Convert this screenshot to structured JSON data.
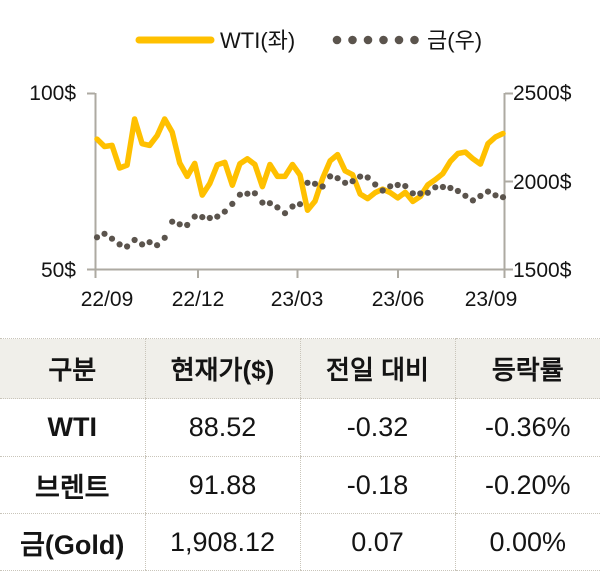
{
  "chart_data": {
    "type": "line",
    "title": "",
    "legend_position": "top-center",
    "grid": false,
    "x_tick_labels": [
      "22/09",
      "22/12",
      "23/03",
      "23/06",
      "23/09"
    ],
    "left_axis": {
      "labels": [
        "100$",
        "50$"
      ],
      "min": 50,
      "max": 100
    },
    "right_axis": {
      "labels": [
        "2500$",
        "2000$",
        "1500$"
      ],
      "min": 1500,
      "max": 2500
    },
    "series": [
      {
        "name": "WTI(좌)",
        "axis": "left",
        "style": "solid",
        "color": "#FFC000",
        "values": [
          86.9,
          84.8,
          85.1,
          78.7,
          79.5,
          92.6,
          85.6,
          85.1,
          87.9,
          92.6,
          88.9,
          80.1,
          76.3,
          80.0,
          71.0,
          74.3,
          79.6,
          80.3,
          73.8,
          79.9,
          81.3,
          79.7,
          73.4,
          79.7,
          76.3,
          76.3,
          79.7,
          76.7,
          66.7,
          69.3,
          75.7,
          80.7,
          82.5,
          77.9,
          76.8,
          71.3,
          70.0,
          71.7,
          72.7,
          71.7,
          70.2,
          71.8,
          69.2,
          70.6,
          73.9,
          75.4,
          77.1,
          80.6,
          82.8,
          83.2,
          81.3,
          79.8,
          85.6,
          87.5,
          88.5
        ]
      },
      {
        "name": "금(우)",
        "axis": "right",
        "style": "dotted",
        "color": "#5B544D",
        "values": [
          1680,
          1700,
          1672,
          1640,
          1628,
          1665,
          1640,
          1652,
          1635,
          1677,
          1769,
          1754,
          1750,
          1798,
          1795,
          1790,
          1798,
          1826,
          1870,
          1922,
          1928,
          1930,
          1877,
          1874,
          1850,
          1817,
          1855,
          1868,
          1990,
          1984,
          1969,
          2026,
          2016,
          1990,
          1999,
          2025,
          2020,
          1980,
          1946,
          1970,
          1977,
          1971,
          1930,
          1929,
          1933,
          1964,
          1966,
          1960,
          1943,
          1916,
          1890,
          1915,
          1940,
          1919,
          1908
        ]
      }
    ]
  },
  "table": {
    "headers": [
      "구분",
      "현재가($)",
      "전일 대비",
      "등락률"
    ],
    "rows": [
      {
        "name": "WTI",
        "price": "88.52",
        "change": "-0.32",
        "pct": "-0.36%"
      },
      {
        "name": "브렌트",
        "price": "91.88",
        "change": "-0.18",
        "pct": "-0.20%"
      },
      {
        "name": "금(Gold)",
        "price": "1,908.12",
        "change": "0.07",
        "pct": "0.00%"
      }
    ]
  },
  "colors": {
    "wti_line": "#FFC000",
    "gold_dots": "#5B544D",
    "axis": "#ADAAA2",
    "table_header_bg": "#F0EFEA",
    "table_border": "#C9C5BA",
    "text": "#141414"
  }
}
